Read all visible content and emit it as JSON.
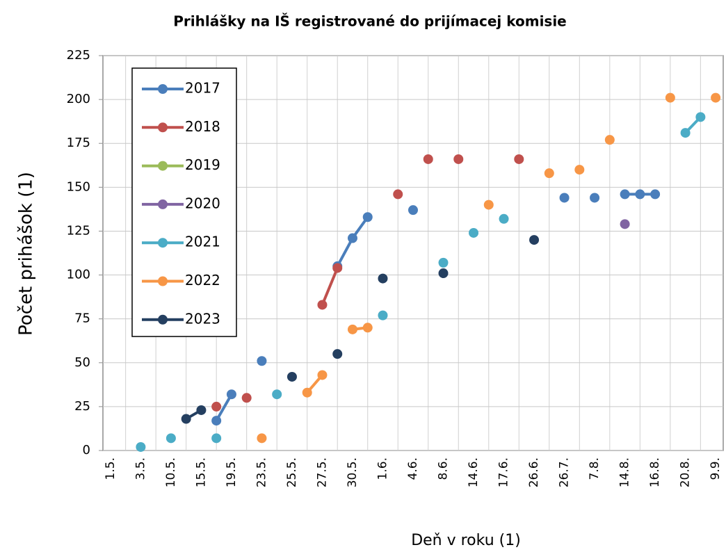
{
  "chart_data": {
    "type": "line",
    "title": "Prihlášky na IŠ registrované do prijímacej komisie",
    "x_label": "Deň v roku (1)",
    "y_label": "Počet prihášok (1)",
    "categories": [
      "1.5.",
      null,
      "3.5.",
      null,
      "10.5.",
      null,
      "15.5.",
      null,
      "19.5.",
      null,
      "23.5.",
      null,
      "25.5.",
      null,
      "27.5.",
      null,
      "30.5.",
      null,
      "1.6.",
      null,
      "4.6.",
      null,
      "8.6.",
      null,
      "14.6.",
      null,
      "17.6.",
      null,
      "26.6.",
      null,
      "26.7.",
      null,
      "7.8.",
      null,
      "14.8.",
      null,
      "16.8.",
      null,
      "20.8.",
      null,
      "9.9."
    ],
    "series": [
      {
        "name": "2017",
        "color": "#4a7ebb",
        "values": [
          null,
          null,
          null,
          null,
          null,
          null,
          null,
          17,
          32,
          null,
          51,
          null,
          null,
          null,
          null,
          105,
          121,
          133,
          null,
          null,
          137,
          null,
          null,
          null,
          null,
          null,
          null,
          null,
          null,
          null,
          144,
          null,
          144,
          null,
          146,
          146,
          146,
          null,
          null,
          null,
          null
        ]
      },
      {
        "name": "2018",
        "color": "#c0504d",
        "values": [
          null,
          null,
          null,
          null,
          null,
          null,
          null,
          25,
          null,
          30,
          null,
          null,
          null,
          null,
          83,
          104,
          null,
          null,
          null,
          146,
          null,
          166,
          null,
          166,
          null,
          null,
          null,
          166,
          null,
          null,
          null,
          null,
          null,
          null,
          null,
          null,
          null,
          null,
          null,
          null,
          null
        ]
      },
      {
        "name": "2019",
        "color": "#9bbb59",
        "values": [
          null,
          null,
          null,
          null,
          null,
          null,
          null,
          null,
          null,
          null,
          null,
          null,
          null,
          null,
          null,
          null,
          null,
          null,
          null,
          null,
          null,
          null,
          null,
          null,
          null,
          null,
          null,
          null,
          null,
          null,
          null,
          null,
          null,
          null,
          null,
          null,
          null,
          null,
          null,
          null,
          null
        ]
      },
      {
        "name": "2020",
        "color": "#8064a2",
        "values": [
          null,
          null,
          null,
          null,
          null,
          null,
          null,
          null,
          null,
          null,
          null,
          null,
          null,
          null,
          null,
          null,
          null,
          null,
          null,
          null,
          null,
          null,
          null,
          null,
          null,
          null,
          null,
          null,
          null,
          null,
          null,
          null,
          null,
          null,
          129,
          null,
          null,
          null,
          null,
          null,
          null
        ]
      },
      {
        "name": "2021",
        "color": "#4bacc6",
        "values": [
          null,
          null,
          2,
          null,
          7,
          null,
          null,
          7,
          null,
          null,
          null,
          32,
          null,
          null,
          null,
          null,
          null,
          null,
          77,
          null,
          null,
          null,
          107,
          null,
          124,
          null,
          132,
          null,
          null,
          null,
          null,
          null,
          null,
          null,
          null,
          null,
          null,
          null,
          181,
          190,
          null
        ]
      },
      {
        "name": "2022",
        "color": "#f79646",
        "values": [
          null,
          null,
          null,
          null,
          null,
          null,
          null,
          null,
          null,
          null,
          7,
          null,
          null,
          33,
          43,
          null,
          69,
          70,
          null,
          null,
          null,
          null,
          null,
          null,
          null,
          140,
          null,
          null,
          null,
          158,
          null,
          160,
          null,
          177,
          null,
          null,
          null,
          201,
          null,
          null,
          201
        ]
      },
      {
        "name": "2023",
        "color": "#243f60",
        "values": [
          null,
          null,
          null,
          null,
          null,
          18,
          23,
          null,
          null,
          null,
          null,
          null,
          42,
          null,
          null,
          55,
          null,
          null,
          98,
          null,
          null,
          null,
          101,
          null,
          null,
          null,
          null,
          null,
          120,
          null,
          null,
          null,
          null,
          null,
          null,
          null,
          null,
          null,
          null,
          null,
          null
        ]
      }
    ],
    "ylim": [
      0,
      225
    ],
    "yticks": [
      0,
      25,
      50,
      75,
      100,
      125,
      150,
      175,
      200,
      225
    ],
    "grid": true,
    "legend": "upper left"
  }
}
